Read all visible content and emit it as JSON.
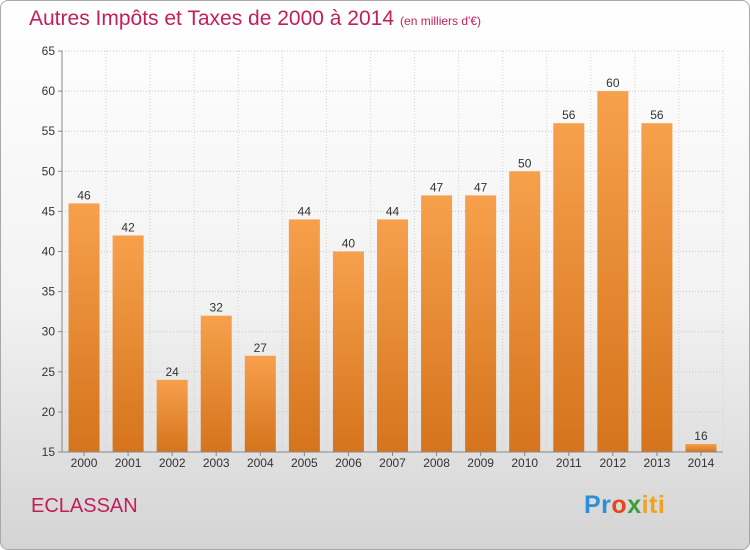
{
  "chart_data": {
    "type": "bar",
    "title": "Autres Impôts et Taxes de 2000 à 2014",
    "subtitle": "(en milliers d'€)",
    "categories": [
      "2000",
      "2001",
      "2002",
      "2003",
      "2004",
      "2005",
      "2006",
      "2007",
      "2008",
      "2009",
      "2010",
      "2011",
      "2012",
      "2013",
      "2014"
    ],
    "values": [
      46,
      42,
      24,
      32,
      27,
      44,
      40,
      44,
      47,
      47,
      50,
      56,
      60,
      56,
      16
    ],
    "ylim": [
      15,
      65
    ],
    "yticks": [
      15,
      20,
      25,
      30,
      35,
      40,
      45,
      50,
      55,
      60,
      65
    ],
    "grid": true,
    "bar_color_top": "#f7a04c",
    "bar_color_bottom": "#d5741c"
  },
  "footer": {
    "commune": "ECLASSAN",
    "logo_parts": [
      "Pr",
      "o",
      "x",
      "iti"
    ]
  }
}
